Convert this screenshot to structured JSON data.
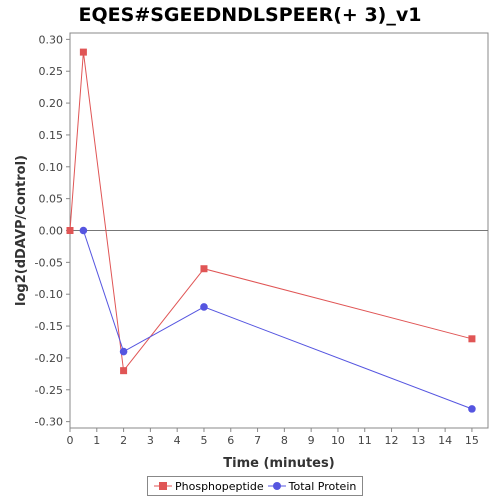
{
  "chart_data": {
    "type": "line",
    "title": "EQES#SGEEDNDLSPEER(+ 3)_v1",
    "xlabel": "Time (minutes)",
    "ylabel": "log2(dDAVP/Control)",
    "xlim": [
      0,
      15.6
    ],
    "ylim": [
      -0.31,
      0.31
    ],
    "xticks": [
      0,
      1,
      2,
      3,
      4,
      5,
      6,
      7,
      8,
      9,
      10,
      11,
      12,
      13,
      14,
      15
    ],
    "xtick_labels": [
      "0",
      "1",
      "2",
      "3",
      "4",
      "5",
      "6",
      "7",
      "8",
      "9",
      "10",
      "11",
      "12",
      "13",
      "14",
      "15"
    ],
    "yticks": [
      0.3,
      0.25,
      0.2,
      0.15,
      0.1,
      0.05,
      0.0,
      -0.05,
      -0.1,
      -0.15,
      -0.2,
      -0.25,
      -0.3
    ],
    "ytick_labels": [
      "0.30",
      "0.25",
      "0.20",
      "0.15",
      "0.10",
      "0.05",
      "0.00",
      "-0.05",
      "-0.10",
      "-0.15",
      "-0.20",
      "-0.25",
      "-0.30"
    ],
    "grid": false,
    "zero_line": true,
    "legend_position": "bottom",
    "series": [
      {
        "name": "Phosphopeptide",
        "color": "#e05555",
        "marker": "square",
        "x": [
          0,
          0.5,
          2,
          5,
          15
        ],
        "y": [
          0.0,
          0.28,
          -0.22,
          -0.06,
          -0.17
        ]
      },
      {
        "name": "Total Protein",
        "color": "#5555e0",
        "marker": "circle",
        "x": [
          0.5,
          2,
          5,
          15
        ],
        "y": [
          0.0,
          -0.19,
          -0.12,
          -0.28
        ]
      }
    ]
  }
}
